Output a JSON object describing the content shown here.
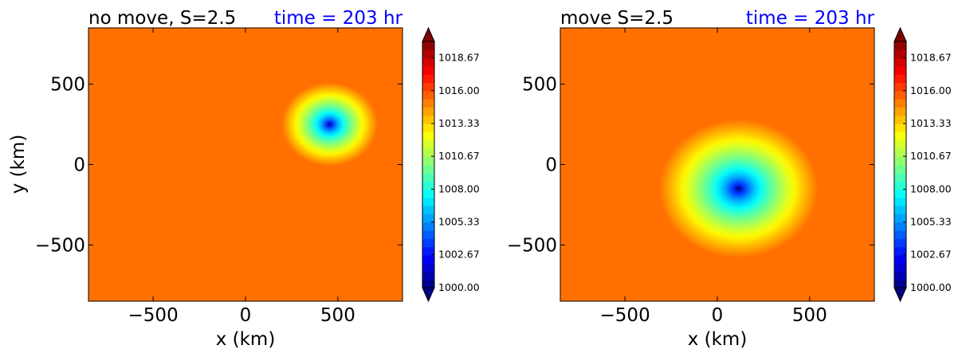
{
  "chart_data": [
    {
      "type": "heatmap",
      "title": "no move, S=2.5",
      "time_label": "time = 203 hr",
      "xlabel": "x (km)",
      "ylabel": "y (km)",
      "xlim": [
        -850,
        850
      ],
      "ylim": [
        -850,
        850
      ],
      "xticks": [
        -500,
        0,
        500
      ],
      "yticks": [
        -500,
        0,
        500
      ],
      "xtick_labels": [
        "−500",
        "0",
        "500"
      ],
      "ytick_labels": [
        "−500",
        "0",
        "500"
      ],
      "background_value": 1015.3,
      "vortex": {
        "x": 455,
        "y": 250,
        "min_value": 1000.0,
        "radius": 260
      }
    },
    {
      "type": "heatmap",
      "title": "move S=2.5",
      "time_label": "time = 203 hr",
      "xlabel": "x (km)",
      "ylabel": "",
      "xlim": [
        -850,
        850
      ],
      "ylim": [
        -850,
        850
      ],
      "xticks": [
        -500,
        0,
        500
      ],
      "yticks": [
        -500,
        0,
        500
      ],
      "xtick_labels": [
        "−500",
        "0",
        "500"
      ],
      "ytick_labels": [
        "−500",
        "0",
        "500"
      ],
      "background_value": 1015.3,
      "vortex": {
        "x": 115,
        "y": -150,
        "min_value": 1000.0,
        "radius": 430
      }
    }
  ],
  "colorbar": {
    "min": 1000.0,
    "max": 1020.0,
    "levels": 30,
    "extend": "both",
    "tick_labels": [
      "1000.00",
      "1002.67",
      "1005.33",
      "1008.00",
      "1010.67",
      "1013.33",
      "1016.00",
      "1018.67"
    ],
    "colormap": "jet"
  },
  "colors": {
    "title": "#000000",
    "time_label": "#0000ff"
  }
}
